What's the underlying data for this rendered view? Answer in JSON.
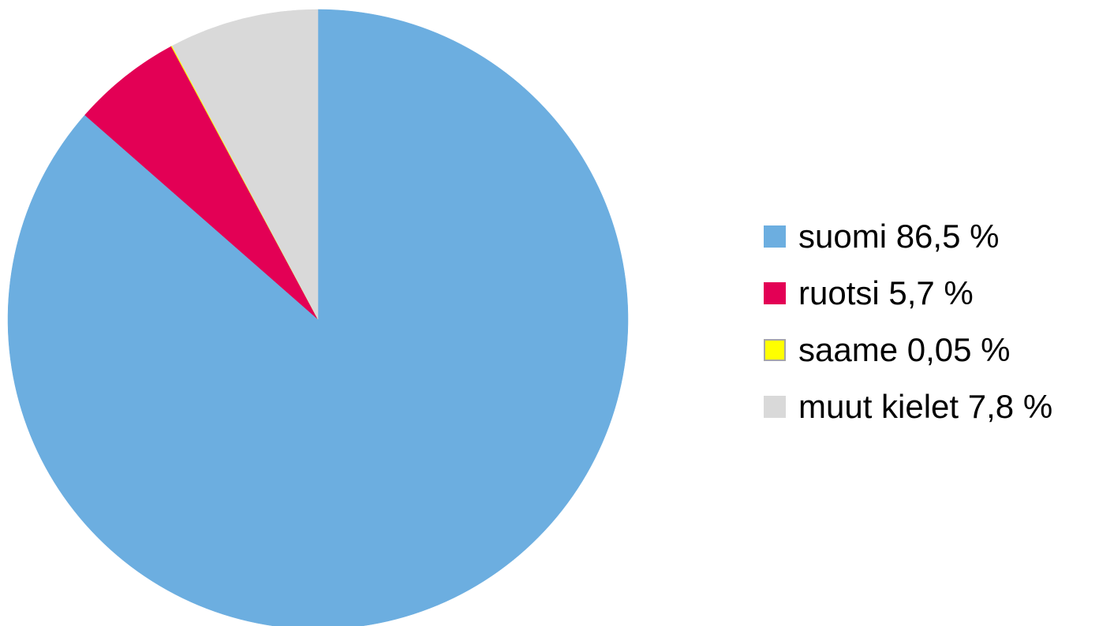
{
  "chart_data": {
    "type": "pie",
    "slices": [
      {
        "label": "suomi 86,5 %",
        "value": 86.5,
        "color": "#6CAEE0"
      },
      {
        "label": "ruotsi 5,7 %",
        "value": 5.7,
        "color": "#E30055"
      },
      {
        "label": "saame 0,05 %",
        "value": 0.05,
        "color": "#FFFF00"
      },
      {
        "label": "muut kielet 7,8 %",
        "value": 7.8,
        "color": "#D9D9D9"
      }
    ],
    "start_angle": "top, clockwise",
    "legend_position": "right"
  }
}
